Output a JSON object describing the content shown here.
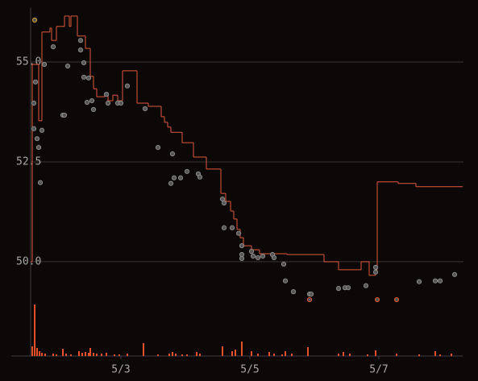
{
  "chart_data": {
    "type": "line",
    "xlim": [
      1.6,
      8.3
    ],
    "xticks": [
      {
        "value": 3,
        "label": "5/3"
      },
      {
        "value": 5,
        "label": "5/5"
      },
      {
        "value": 7,
        "label": "5/7"
      }
    ],
    "ylim": [
      47.7,
      56.35
    ],
    "yticks": [
      {
        "value": 50,
        "label": "50.0"
      },
      {
        "value": 52.5,
        "label": "52.5"
      },
      {
        "value": 55,
        "label": "55.0"
      }
    ],
    "y2lim": [
      0,
      70
    ],
    "grid": true,
    "series": [
      {
        "type": "step",
        "color": "#e2593a",
        "x": [
          1.6,
          1.625,
          1.7,
          1.725,
          1.775,
          1.9,
          1.925,
          2.0,
          2.075,
          2.125,
          2.175,
          2.2,
          2.225,
          2.275,
          2.325,
          2.4,
          2.45,
          2.5,
          2.525,
          2.575,
          2.625,
          2.7,
          2.75,
          2.8,
          2.875,
          2.95,
          3.025,
          3.225,
          3.25,
          3.4,
          3.425,
          3.575,
          3.625,
          3.675,
          3.725,
          3.775,
          3.925,
          3.95,
          4.075,
          4.125,
          4.275,
          4.325,
          4.525,
          4.55,
          4.625,
          4.7,
          4.75,
          4.8,
          4.85,
          4.9,
          5.025,
          5.15,
          5.525,
          5.575,
          6.125,
          6.15,
          6.35,
          6.375,
          6.7,
          6.725,
          6.825,
          6.85,
          6.95,
          6.975,
          7.3,
          7.575
        ],
        "values": [
          50.0,
          54.94,
          54.94,
          53.53,
          55.75,
          55.85,
          55.54,
          55.89,
          55.89,
          56.15,
          56.15,
          55.89,
          56.15,
          56.15,
          55.65,
          55.65,
          55.34,
          55.34,
          54.64,
          54.33,
          54.13,
          54.13,
          54.23,
          54.03,
          54.17,
          54.03,
          54.78,
          54.78,
          53.97,
          53.97,
          53.89,
          53.89,
          53.63,
          53.49,
          53.37,
          53.24,
          53.24,
          52.98,
          52.98,
          52.62,
          52.62,
          52.32,
          52.32,
          51.71,
          51.51,
          51.27,
          51.07,
          50.81,
          50.6,
          50.4,
          50.3,
          50.2,
          50.2,
          50.18,
          50.18,
          50.0,
          50.0,
          49.8,
          49.8,
          50.0,
          50.0,
          49.66,
          49.8,
          52.0,
          51.96,
          51.88
        ]
      },
      {
        "type": "scatter",
        "color": "#8c8c8c",
        "x": [
          1.65,
          1.675,
          1.65,
          1.7,
          1.725,
          1.75,
          1.775,
          1.813,
          1.95,
          2.1,
          2.125,
          2.175,
          2.375,
          2.375,
          2.425,
          2.425,
          2.5,
          2.475,
          2.55,
          2.575,
          2.775,
          2.8,
          2.95,
          3.0,
          3.1,
          3.375,
          3.575,
          3.8,
          3.775,
          3.825,
          3.925,
          4.025,
          4.2,
          4.225,
          4.575,
          4.6,
          4.6,
          4.725,
          4.825,
          4.875,
          4.875,
          4.875,
          5.025,
          5.05,
          5.125,
          5.2,
          5.35,
          5.375,
          5.525,
          5.55,
          5.675,
          5.925,
          5.95,
          6.375,
          6.475,
          6.525,
          6.8,
          6.95,
          6.95,
          7.625,
          7.875,
          7.95,
          8.175
        ],
        "values": [
          53.97,
          54.5,
          53.33,
          53.08,
          52.86,
          51.98,
          53.29,
          54.94,
          55.38,
          53.67,
          53.67,
          54.9,
          55.54,
          55.3,
          54.98,
          54.62,
          54.6,
          53.99,
          54.03,
          53.81,
          54.19,
          53.97,
          53.97,
          53.97,
          54.4,
          53.83,
          52.86,
          52.7,
          51.96,
          52.1,
          52.1,
          52.26,
          52.2,
          52.12,
          51.57,
          51.47,
          50.85,
          50.85,
          50.71,
          50.4,
          50.18,
          50.08,
          50.26,
          50.14,
          50.1,
          50.14,
          50.18,
          50.1,
          49.94,
          49.52,
          49.25,
          49.19,
          49.19,
          49.33,
          49.35,
          49.35,
          49.4,
          49.74,
          49.86,
          49.5,
          49.52,
          49.52,
          49.68
        ]
      },
      {
        "type": "scatter",
        "color": "#d9a030",
        "x": [
          1.663
        ],
        "values": [
          56.05
        ]
      },
      {
        "type": "scatter",
        "color": "#e0502a",
        "x": [
          5.925,
          6.975,
          7.275
        ],
        "values": [
          49.05,
          49.05,
          49.05
        ]
      },
      {
        "type": "bar",
        "axis": "y2",
        "color": "#e8502a",
        "x": [
          1.625,
          1.663,
          1.7,
          1.738,
          1.775,
          1.825,
          1.95,
          2.0,
          2.1,
          2.15,
          2.225,
          2.35,
          2.4,
          2.45,
          2.5,
          2.525,
          2.575,
          2.625,
          2.7,
          2.775,
          2.9,
          2.975,
          3.1,
          3.35,
          3.575,
          3.75,
          3.8,
          3.85,
          3.95,
          4.025,
          4.175,
          4.225,
          4.575,
          4.725,
          4.775,
          4.875,
          5.025,
          5.125,
          5.3,
          5.375,
          5.5,
          5.55,
          5.65,
          5.9,
          6.375,
          6.45,
          6.55,
          6.825,
          6.95,
          7.275,
          7.625,
          7.875,
          7.95,
          8.125
        ],
        "values": [
          12,
          64,
          10,
          6,
          4,
          3,
          3,
          2,
          9,
          3,
          2,
          6,
          4,
          5,
          4,
          10,
          4,
          3,
          3,
          4,
          2,
          2,
          3,
          16,
          2,
          3,
          5,
          3,
          2,
          2,
          5,
          3,
          12,
          6,
          8,
          18,
          6,
          3,
          5,
          3,
          2,
          6,
          3,
          11,
          3,
          5,
          3,
          2,
          7,
          3,
          2,
          6,
          2,
          3
        ]
      }
    ]
  }
}
